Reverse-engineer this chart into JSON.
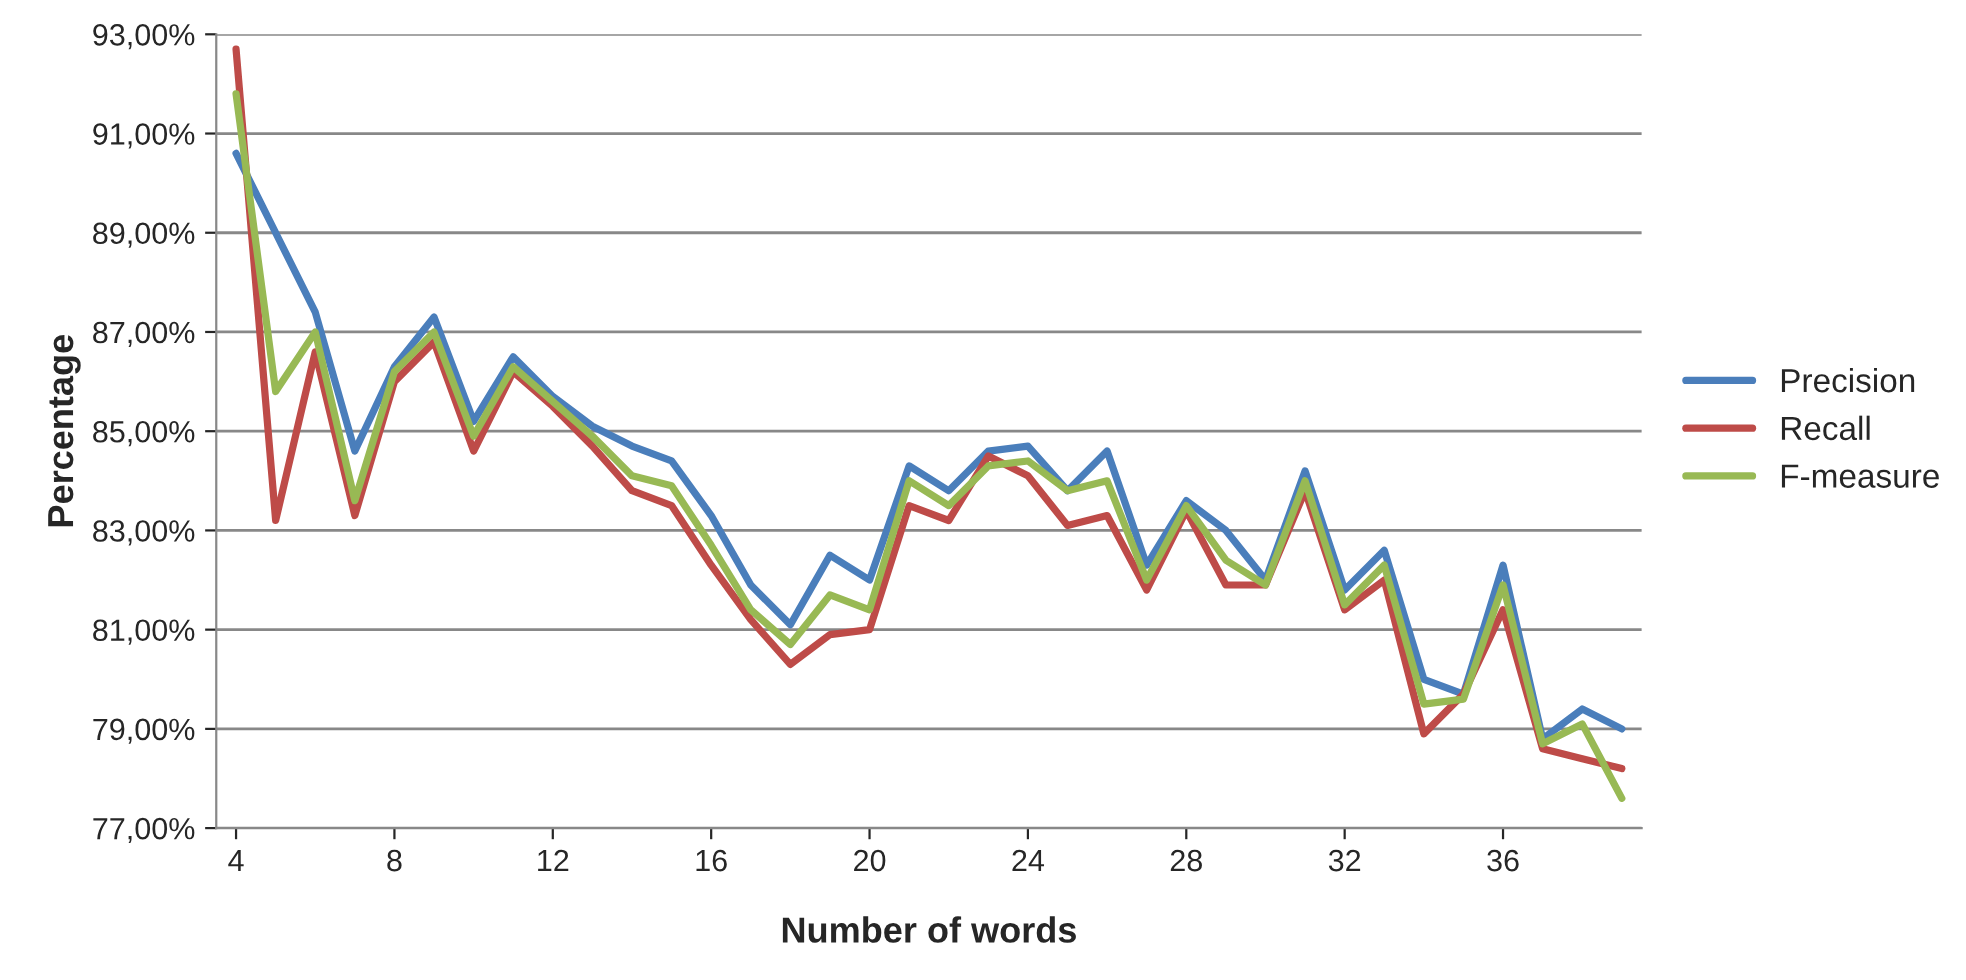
{
  "chart_data": {
    "type": "line",
    "xlabel": "Number of words",
    "ylabel": "Percentage",
    "x": [
      4,
      5,
      6,
      7,
      8,
      9,
      10,
      11,
      12,
      13,
      14,
      15,
      16,
      17,
      18,
      19,
      20,
      21,
      22,
      23,
      24,
      25,
      26,
      27,
      28,
      29,
      30,
      31,
      32,
      33,
      34,
      35,
      36,
      37,
      38,
      39
    ],
    "series": [
      {
        "name": "Precision",
        "color": "#4a7ebb",
        "values": [
          90.6,
          89.0,
          87.4,
          84.6,
          86.3,
          87.3,
          85.2,
          86.5,
          85.7,
          85.1,
          84.7,
          84.4,
          83.3,
          81.9,
          81.1,
          82.5,
          82.0,
          84.3,
          83.8,
          84.6,
          84.7,
          83.8,
          84.6,
          82.3,
          83.6,
          83.0,
          82.0,
          84.2,
          81.8,
          82.6,
          80.0,
          79.7,
          82.3,
          78.8,
          79.4,
          79.0
        ]
      },
      {
        "name": "Recall",
        "color": "#be4b48",
        "values": [
          92.7,
          83.2,
          86.6,
          83.3,
          86.0,
          86.8,
          84.6,
          86.2,
          85.5,
          84.7,
          83.8,
          83.5,
          82.3,
          81.2,
          80.3,
          80.9,
          81.0,
          83.5,
          83.2,
          84.5,
          84.1,
          83.1,
          83.3,
          81.8,
          83.4,
          81.9,
          81.9,
          83.8,
          81.4,
          82.0,
          78.9,
          79.7,
          81.4,
          78.6,
          78.4,
          78.2
        ]
      },
      {
        "name": "F-measure",
        "color": "#98b954",
        "values": [
          91.8,
          85.8,
          87.0,
          83.6,
          86.2,
          87.0,
          84.9,
          86.3,
          85.6,
          84.9,
          84.1,
          83.9,
          82.7,
          81.4,
          80.7,
          81.7,
          81.4,
          84.0,
          83.5,
          84.3,
          84.4,
          83.8,
          84.0,
          82.0,
          83.5,
          82.4,
          81.9,
          84.0,
          81.5,
          82.3,
          79.5,
          79.6,
          81.9,
          78.7,
          79.1,
          77.6
        ]
      }
    ],
    "xlim": [
      3.5,
      39.5
    ],
    "xticks": [
      4,
      8,
      12,
      16,
      20,
      24,
      28,
      32,
      36
    ],
    "ylim": [
      77,
      93
    ],
    "yticks": [
      {
        "value": 77,
        "label": "77,00%"
      },
      {
        "value": 79,
        "label": "79,00%"
      },
      {
        "value": 81,
        "label": "81,00%"
      },
      {
        "value": 83,
        "label": "83,00%"
      },
      {
        "value": 85,
        "label": "85,00%"
      },
      {
        "value": 87,
        "label": "87,00%"
      },
      {
        "value": 89,
        "label": "89,00%"
      },
      {
        "value": 91,
        "label": "91,00%"
      },
      {
        "value": 93,
        "label": "93,00%"
      }
    ],
    "grid": "y",
    "legend": "right",
    "marker": "none",
    "line_style": "solid"
  }
}
